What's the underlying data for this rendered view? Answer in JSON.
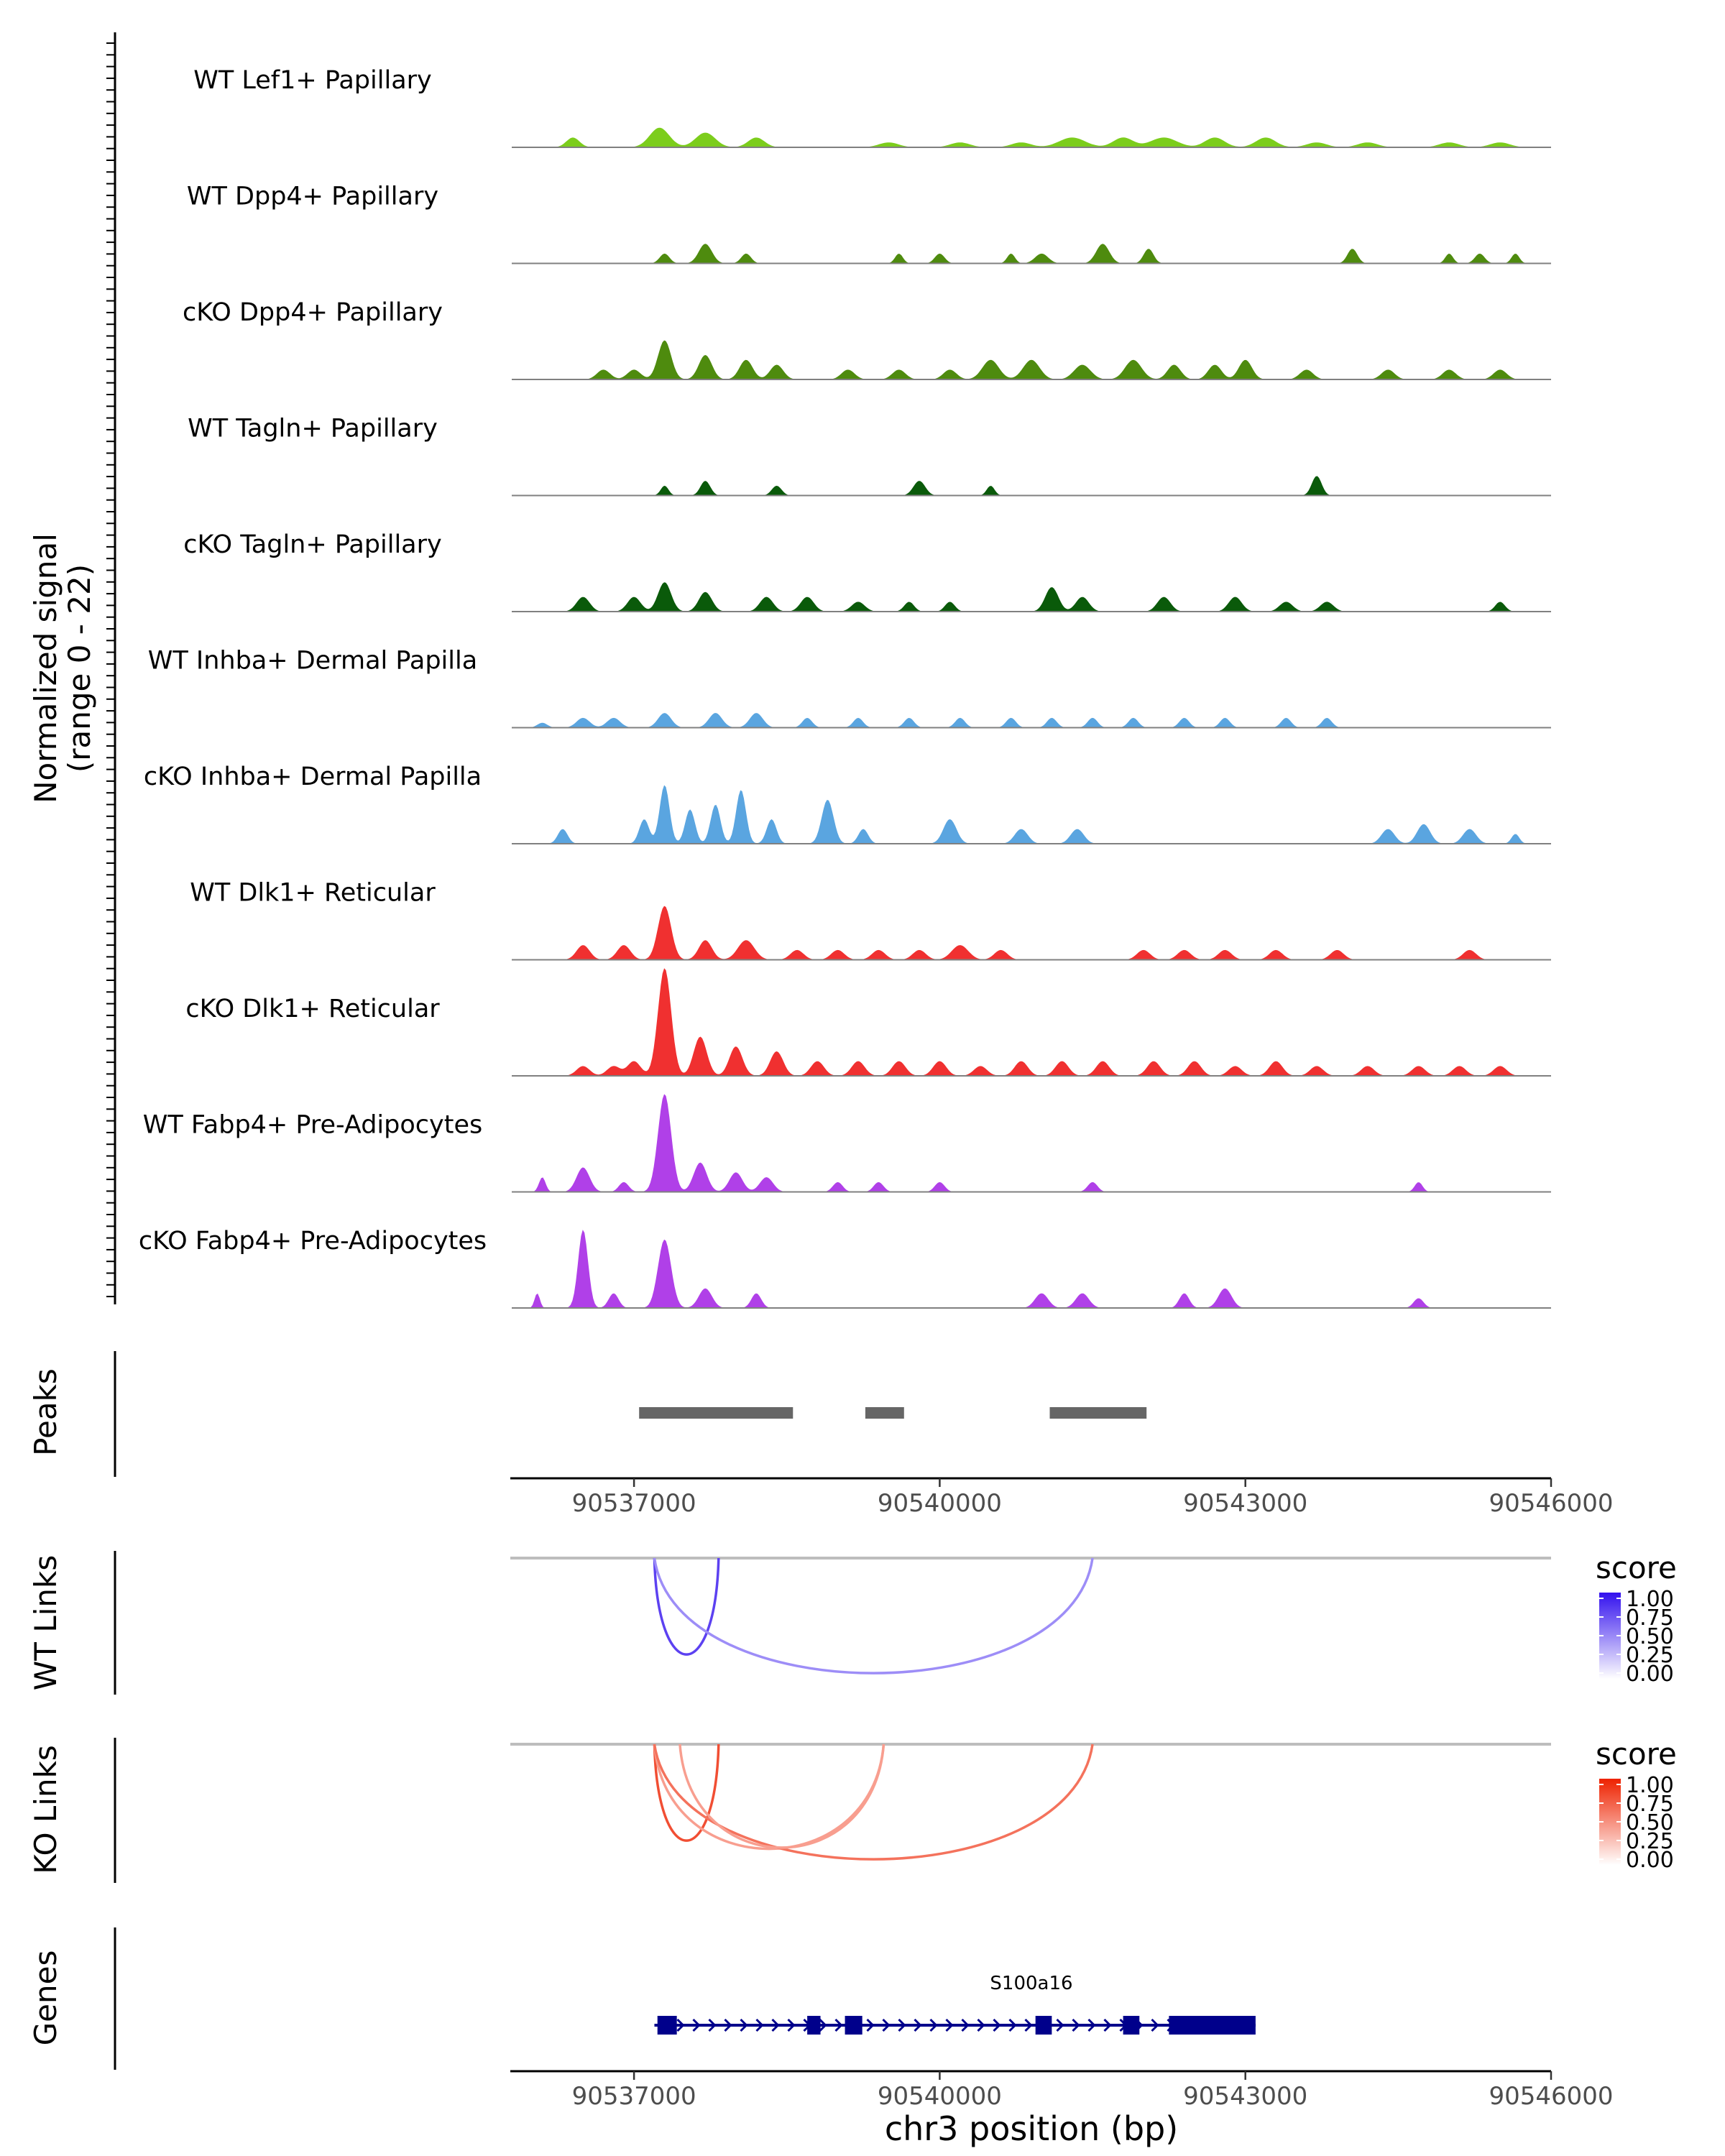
{
  "chart_data": {
    "type": "area",
    "chromosome": "chr3",
    "x_range": [
      90535800,
      90546000
    ],
    "x_ticks": [
      90537000,
      90540000,
      90543000,
      90546000
    ],
    "xlabel": "chr3 position (bp)",
    "signal_panel": {
      "ylabel_line1": "Normalized signal",
      "ylabel_line2": "(range 0 - 22)",
      "y_range": [
        0,
        22
      ],
      "tracks": [
        {
          "name": "WT Lef1+ Papillary",
          "color": "#7CCD1C",
          "peaks": [
            [
              90536400,
              2,
              200
            ],
            [
              90537250,
              4,
              300
            ],
            [
              90537700,
              3,
              300
            ],
            [
              90538200,
              2,
              250
            ],
            [
              90539500,
              1,
              300
            ],
            [
              90540200,
              1,
              300
            ],
            [
              90540800,
              1,
              300
            ],
            [
              90541300,
              2,
              400
            ],
            [
              90541800,
              2,
              300
            ],
            [
              90542200,
              2,
              400
            ],
            [
              90542700,
              2,
              300
            ],
            [
              90543200,
              2,
              300
            ],
            [
              90543700,
              1,
              300
            ],
            [
              90544200,
              1,
              300
            ],
            [
              90545000,
              1,
              300
            ],
            [
              90545500,
              1,
              300
            ]
          ]
        },
        {
          "name": "WT Dpp4+ Papillary",
          "color": "#4E8B0E",
          "peaks": [
            [
              90537300,
              2,
              150
            ],
            [
              90537700,
              4,
              200
            ],
            [
              90538100,
              2,
              150
            ],
            [
              90539600,
              2,
              120
            ],
            [
              90540000,
              2,
              150
            ],
            [
              90540700,
              2,
              120
            ],
            [
              90541000,
              2,
              200
            ],
            [
              90541600,
              4,
              200
            ],
            [
              90542050,
              3,
              150
            ],
            [
              90544050,
              3,
              150
            ],
            [
              90545000,
              2,
              120
            ],
            [
              90545300,
              2,
              150
            ],
            [
              90545650,
              2,
              120
            ]
          ]
        },
        {
          "name": "cKO Dpp4+ Papillary",
          "color": "#4E8B0E",
          "peaks": [
            [
              90536700,
              2,
              200
            ],
            [
              90537000,
              2,
              200
            ],
            [
              90537300,
              8,
              200
            ],
            [
              90537700,
              5,
              200
            ],
            [
              90538100,
              4,
              200
            ],
            [
              90538400,
              3,
              200
            ],
            [
              90539100,
              2,
              200
            ],
            [
              90539600,
              2,
              200
            ],
            [
              90540100,
              2,
              200
            ],
            [
              90540500,
              4,
              250
            ],
            [
              90540900,
              4,
              250
            ],
            [
              90541400,
              3,
              250
            ],
            [
              90541900,
              4,
              250
            ],
            [
              90542300,
              3,
              200
            ],
            [
              90542700,
              3,
              200
            ],
            [
              90543000,
              4,
              200
            ],
            [
              90543600,
              2,
              200
            ],
            [
              90544400,
              2,
              200
            ],
            [
              90545000,
              2,
              200
            ],
            [
              90545500,
              2,
              200
            ]
          ]
        },
        {
          "name": "WT Tagln+ Papillary",
          "color": "#0A5A0A",
          "peaks": [
            [
              90537300,
              2,
              120
            ],
            [
              90537700,
              3,
              150
            ],
            [
              90538400,
              2,
              150
            ],
            [
              90539800,
              3,
              180
            ],
            [
              90540500,
              2,
              120
            ],
            [
              90543700,
              4,
              150
            ]
          ]
        },
        {
          "name": "cKO Tagln+ Papillary",
          "color": "#0A5A0A",
          "peaks": [
            [
              90536500,
              3,
              200
            ],
            [
              90537000,
              3,
              200
            ],
            [
              90537300,
              6,
              200
            ],
            [
              90537700,
              4,
              200
            ],
            [
              90538300,
              3,
              200
            ],
            [
              90538700,
              3,
              200
            ],
            [
              90539200,
              2,
              200
            ],
            [
              90539700,
              2,
              150
            ],
            [
              90540100,
              2,
              150
            ],
            [
              90541100,
              5,
              200
            ],
            [
              90541400,
              3,
              200
            ],
            [
              90542200,
              3,
              200
            ],
            [
              90542900,
              3,
              200
            ],
            [
              90543400,
              2,
              200
            ],
            [
              90543800,
              2,
              200
            ],
            [
              90545500,
              2,
              150
            ]
          ]
        },
        {
          "name": "WT Inhba+ Dermal Papilla",
          "color": "#5AA5E0",
          "peaks": [
            [
              90536100,
              1,
              150
            ],
            [
              90536500,
              2,
              200
            ],
            [
              90536800,
              2,
              200
            ],
            [
              90537300,
              3,
              200
            ],
            [
              90537800,
              3,
              200
            ],
            [
              90538200,
              3,
              200
            ],
            [
              90538700,
              2,
              150
            ],
            [
              90539200,
              2,
              150
            ],
            [
              90539700,
              2,
              150
            ],
            [
              90540200,
              2,
              150
            ],
            [
              90540700,
              2,
              150
            ],
            [
              90541100,
              2,
              150
            ],
            [
              90541500,
              2,
              150
            ],
            [
              90541900,
              2,
              150
            ],
            [
              90542400,
              2,
              150
            ],
            [
              90542800,
              2,
              150
            ],
            [
              90543400,
              2,
              150
            ],
            [
              90543800,
              2,
              150
            ]
          ]
        },
        {
          "name": "cKO Inhba+ Dermal Papilla",
          "color": "#5AA5E0",
          "peaks": [
            [
              90536300,
              3,
              150
            ],
            [
              90537100,
              5,
              150
            ],
            [
              90537300,
              12,
              150
            ],
            [
              90537550,
              7,
              150
            ],
            [
              90537800,
              8,
              150
            ],
            [
              90538050,
              11,
              150
            ],
            [
              90538350,
              5,
              150
            ],
            [
              90538900,
              9,
              180
            ],
            [
              90539250,
              3,
              150
            ],
            [
              90540100,
              5,
              200
            ],
            [
              90540800,
              3,
              200
            ],
            [
              90541350,
              3,
              200
            ],
            [
              90544400,
              3,
              200
            ],
            [
              90544750,
              4,
              200
            ],
            [
              90545200,
              3,
              200
            ],
            [
              90545650,
              2,
              120
            ]
          ]
        },
        {
          "name": "WT Dlk1+ Reticular",
          "color": "#F03030",
          "peaks": [
            [
              90536500,
              3,
              200
            ],
            [
              90536900,
              3,
              200
            ],
            [
              90537300,
              11,
              200
            ],
            [
              90537700,
              4,
              200
            ],
            [
              90538100,
              4,
              250
            ],
            [
              90538600,
              2,
              200
            ],
            [
              90539000,
              2,
              200
            ],
            [
              90539400,
              2,
              200
            ],
            [
              90539800,
              2,
              200
            ],
            [
              90540200,
              3,
              250
            ],
            [
              90540600,
              2,
              200
            ],
            [
              90542000,
              2,
              200
            ],
            [
              90542400,
              2,
              200
            ],
            [
              90542800,
              2,
              200
            ],
            [
              90543300,
              2,
              200
            ],
            [
              90543900,
              2,
              200
            ],
            [
              90545200,
              2,
              200
            ]
          ]
        },
        {
          "name": "cKO Dlk1+ Reticular",
          "color": "#F03030",
          "peaks": [
            [
              90536500,
              2,
              200
            ],
            [
              90536800,
              2,
              200
            ],
            [
              90537000,
              3,
              200
            ],
            [
              90537300,
              22,
              200
            ],
            [
              90537650,
              8,
              200
            ],
            [
              90538000,
              6,
              200
            ],
            [
              90538400,
              5,
              200
            ],
            [
              90538800,
              3,
              200
            ],
            [
              90539200,
              3,
              200
            ],
            [
              90539600,
              3,
              200
            ],
            [
              90540000,
              3,
              200
            ],
            [
              90540400,
              2,
              200
            ],
            [
              90540800,
              3,
              200
            ],
            [
              90541200,
              3,
              200
            ],
            [
              90541600,
              3,
              200
            ],
            [
              90542100,
              3,
              200
            ],
            [
              90542500,
              3,
              200
            ],
            [
              90542900,
              2,
              200
            ],
            [
              90543300,
              3,
              200
            ],
            [
              90543700,
              2,
              200
            ],
            [
              90544200,
              2,
              200
            ],
            [
              90544700,
              2,
              200
            ],
            [
              90545100,
              2,
              200
            ],
            [
              90545500,
              2,
              200
            ]
          ]
        },
        {
          "name": "WT Fabp4+ Pre-Adipocytes",
          "color": "#B040E8",
          "peaks": [
            [
              90536100,
              3,
              100
            ],
            [
              90536500,
              5,
              200
            ],
            [
              90536900,
              2,
              150
            ],
            [
              90537300,
              20,
              200
            ],
            [
              90537650,
              6,
              200
            ],
            [
              90538000,
              4,
              200
            ],
            [
              90538300,
              3,
              200
            ],
            [
              90539000,
              2,
              150
            ],
            [
              90539400,
              2,
              150
            ],
            [
              90540000,
              2,
              150
            ],
            [
              90541500,
              2,
              150
            ],
            [
              90544700,
              2,
              120
            ]
          ]
        },
        {
          "name": "cKO Fabp4+ Pre-Adipocytes",
          "color": "#B040E8",
          "peaks": [
            [
              90536050,
              3,
              80
            ],
            [
              90536500,
              16,
              150
            ],
            [
              90536800,
              3,
              150
            ],
            [
              90537300,
              14,
              200
            ],
            [
              90537700,
              4,
              200
            ],
            [
              90538200,
              3,
              150
            ],
            [
              90541000,
              3,
              200
            ],
            [
              90541400,
              3,
              200
            ],
            [
              90542400,
              3,
              150
            ],
            [
              90542800,
              4,
              200
            ],
            [
              90544700,
              2,
              150
            ]
          ]
        }
      ]
    },
    "peaks_panel": {
      "ylabel": "Peaks",
      "regions": [
        [
          90537050,
          90538560
        ],
        [
          90539270,
          90539650
        ],
        [
          90541080,
          90542030
        ]
      ]
    },
    "wt_links_panel": {
      "ylabel": "WT Links",
      "legend_title": "score",
      "legend_ticks": [
        "1.00",
        "0.75",
        "0.50",
        "0.25",
        "0.00"
      ],
      "color_high": "#3311EE",
      "links": [
        {
          "start": 90537200,
          "end": 90537830,
          "score": 0.75
        },
        {
          "start": 90537200,
          "end": 90541500,
          "score": 0.35
        }
      ]
    },
    "ko_links_panel": {
      "ylabel": "KO Links",
      "legend_title": "score",
      "legend_ticks": [
        "1.00",
        "0.75",
        "0.50",
        "0.25",
        "0.00"
      ],
      "color_high": "#EE2200",
      "links": [
        {
          "start": 90537200,
          "end": 90537830,
          "score": 0.75
        },
        {
          "start": 90537200,
          "end": 90539450,
          "score": 0.3
        },
        {
          "start": 90537200,
          "end": 90541500,
          "score": 0.55
        },
        {
          "start": 90537450,
          "end": 90539450,
          "score": 0.3
        }
      ]
    },
    "genes_panel": {
      "ylabel": "Genes",
      "gene_name": "S100a16",
      "gene_start": 90537200,
      "gene_end": 90543100,
      "exons": [
        [
          90537230,
          90537420
        ],
        [
          90538700,
          90538830
        ],
        [
          90539070,
          90539240
        ],
        [
          90540940,
          90541100
        ],
        [
          90541800,
          90541960
        ],
        [
          90542250,
          90543100
        ]
      ],
      "color": "#00008B"
    }
  }
}
